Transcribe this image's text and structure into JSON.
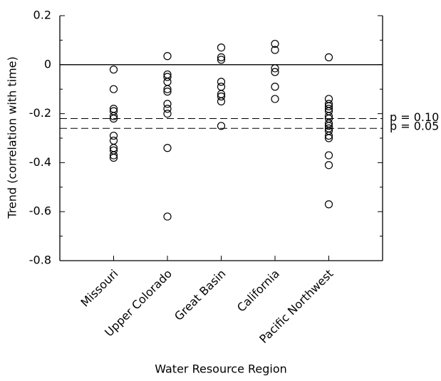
{
  "chart_data": {
    "type": "strip",
    "y_label": "Trend (correlation with time)",
    "x_label": "Water Resource Region",
    "categories": [
      "Missouri",
      "Upper Colorado",
      "Great Basin",
      "California",
      "Pacific Northwest"
    ],
    "values": [
      [
        -0.02,
        -0.1,
        -0.18,
        -0.19,
        -0.21,
        -0.22,
        -0.29,
        -0.31,
        -0.34,
        -0.35,
        -0.37,
        -0.38
      ],
      [
        0.035,
        -0.04,
        -0.05,
        -0.07,
        -0.1,
        -0.11,
        -0.16,
        -0.18,
        -0.2,
        -0.34,
        -0.62
      ],
      [
        0.07,
        0.03,
        0.02,
        -0.07,
        -0.09,
        -0.12,
        -0.13,
        -0.15,
        -0.25
      ],
      [
        0.085,
        0.06,
        -0.015,
        -0.03,
        -0.09,
        -0.14
      ],
      [
        0.03,
        -0.14,
        -0.16,
        -0.17,
        -0.18,
        -0.19,
        -0.21,
        -0.22,
        -0.24,
        -0.25,
        -0.26,
        -0.27,
        -0.29,
        -0.3,
        -0.37,
        -0.41,
        -0.57
      ]
    ],
    "color": "#000000",
    "ylim": [
      -0.8,
      0.2
    ],
    "yticks": [
      -0.8,
      -0.6,
      -0.4,
      -0.2,
      0,
      0.2
    ],
    "zero_line": true,
    "reference_lines": [
      {
        "value": -0.22,
        "label": "p = 0.10"
      },
      {
        "value": -0.26,
        "label": "p = 0.05"
      }
    ]
  }
}
